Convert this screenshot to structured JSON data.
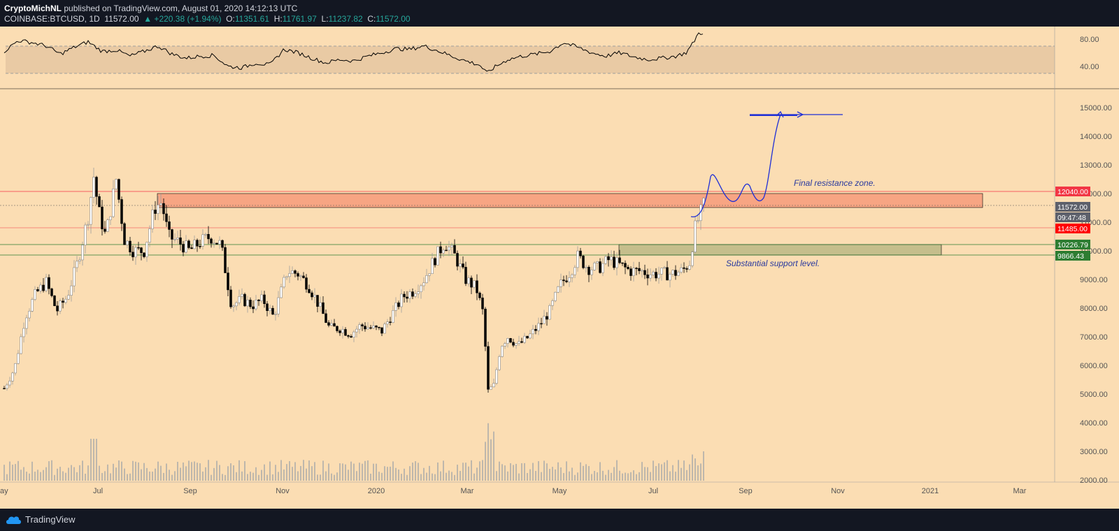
{
  "header": {
    "author": "CryptoMichNL",
    "published_text": "published on TradingView.com, August 01, 2020 14:12:13 UTC",
    "symbol": "COINBASE:BTCUSD, 1D",
    "price": "11572.00",
    "change": "▲ +220.38 (+1.94%)",
    "o_label": "O:",
    "o_val": "11351.61",
    "h_label": "H:",
    "h_val": "11761.97",
    "l_label": "L:",
    "l_val": "11237.82",
    "c_label": "C:",
    "c_val": "11572.00"
  },
  "footer": {
    "brand": "TradingView"
  },
  "chart_data": {
    "type": "candlestick",
    "x_labels": [
      "ay",
      "Jul",
      "Sep",
      "Nov",
      "2020",
      "Mar",
      "May",
      "Jul",
      "Sep",
      "Nov",
      "2021",
      "Mar"
    ],
    "price_axis_labels": [
      "15000.00",
      "14000.00",
      "13000.00",
      "12000.00",
      "11000.00",
      "10000.00",
      "9000.00",
      "8000.00",
      "7000.00",
      "6000.00",
      "5000.00",
      "4000.00",
      "3000.00",
      "2000.00"
    ],
    "rsi_axis_labels": [
      "80.00",
      "40.00"
    ],
    "ylim": [
      2000,
      15600
    ],
    "price_tags": [
      {
        "text": "12040.00",
        "color": "#f23645"
      },
      {
        "text": "11572.00",
        "color": "#5d606b"
      },
      {
        "text": "09:47:48",
        "color": "#5d606b"
      },
      {
        "text": "11485.00",
        "color": "#ff0000"
      },
      {
        "text": "10226.79",
        "color": "#2e7d32"
      },
      {
        "text": "9866.43",
        "color": "#2e7d32"
      }
    ],
    "annotations": [
      {
        "text": "Final resistance zone."
      },
      {
        "text": "Substantial support level."
      }
    ],
    "series": [
      {
        "name": "BTCUSD",
        "points": [
          [
            0,
            5200
          ],
          [
            15,
            5900
          ],
          [
            30,
            7700
          ],
          [
            45,
            8500
          ],
          [
            60,
            8900
          ],
          [
            75,
            7900
          ],
          [
            90,
            8400
          ],
          [
            105,
            9600
          ],
          [
            120,
            11200
          ],
          [
            128,
            12600
          ],
          [
            135,
            11400
          ],
          [
            145,
            10500
          ],
          [
            160,
            12500
          ],
          [
            172,
            10400
          ],
          [
            185,
            10000
          ],
          [
            200,
            10000
          ],
          [
            215,
            11500
          ],
          [
            225,
            11700
          ],
          [
            235,
            10500
          ],
          [
            250,
            10300
          ],
          [
            265,
            10000
          ],
          [
            280,
            10300
          ],
          [
            295,
            10500
          ],
          [
            310,
            10200
          ],
          [
            325,
            8100
          ],
          [
            340,
            8300
          ],
          [
            355,
            8100
          ],
          [
            370,
            8300
          ],
          [
            385,
            7700
          ],
          [
            395,
            8500
          ],
          [
            405,
            9300
          ],
          [
            420,
            9200
          ],
          [
            435,
            8800
          ],
          [
            450,
            8100
          ],
          [
            465,
            7300
          ],
          [
            480,
            7300
          ],
          [
            495,
            7100
          ],
          [
            510,
            7400
          ],
          [
            525,
            7300
          ],
          [
            540,
            7200
          ],
          [
            555,
            7800
          ],
          [
            570,
            8400
          ],
          [
            585,
            8600
          ],
          [
            600,
            9000
          ],
          [
            615,
            9700
          ],
          [
            630,
            10300
          ],
          [
            645,
            9800
          ],
          [
            660,
            9000
          ],
          [
            675,
            8700
          ],
          [
            685,
            7800
          ],
          [
            692,
            5100
          ],
          [
            700,
            5300
          ],
          [
            710,
            6700
          ],
          [
            720,
            7000
          ],
          [
            735,
            6700
          ],
          [
            750,
            7000
          ],
          [
            765,
            7400
          ],
          [
            780,
            7900
          ],
          [
            795,
            8800
          ],
          [
            810,
            9300
          ],
          [
            820,
            9800
          ],
          [
            835,
            9400
          ],
          [
            850,
            9400
          ],
          [
            865,
            9700
          ],
          [
            880,
            9500
          ],
          [
            895,
            9300
          ],
          [
            910,
            9300
          ],
          [
            925,
            9200
          ],
          [
            940,
            9200
          ],
          [
            955,
            9200
          ],
          [
            970,
            9300
          ],
          [
            980,
            9600
          ],
          [
            988,
            10800
          ],
          [
            994,
            11200
          ],
          [
            1000,
            11600
          ]
        ]
      },
      {
        "name": "RSI",
        "points": [
          [
            0,
            62
          ],
          [
            20,
            78
          ],
          [
            40,
            75
          ],
          [
            60,
            70
          ],
          [
            80,
            58
          ],
          [
            100,
            68
          ],
          [
            120,
            76
          ],
          [
            140,
            62
          ],
          [
            160,
            64
          ],
          [
            180,
            55
          ],
          [
            200,
            62
          ],
          [
            220,
            70
          ],
          [
            240,
            58
          ],
          [
            260,
            52
          ],
          [
            280,
            55
          ],
          [
            300,
            56
          ],
          [
            320,
            40
          ],
          [
            340,
            38
          ],
          [
            360,
            45
          ],
          [
            380,
            42
          ],
          [
            400,
            65
          ],
          [
            420,
            60
          ],
          [
            440,
            52
          ],
          [
            460,
            45
          ],
          [
            480,
            50
          ],
          [
            500,
            48
          ],
          [
            520,
            55
          ],
          [
            540,
            60
          ],
          [
            560,
            66
          ],
          [
            580,
            65
          ],
          [
            600,
            70
          ],
          [
            620,
            63
          ],
          [
            640,
            55
          ],
          [
            660,
            48
          ],
          [
            680,
            42
          ],
          [
            690,
            30
          ],
          [
            700,
            38
          ],
          [
            720,
            50
          ],
          [
            740,
            55
          ],
          [
            760,
            58
          ],
          [
            780,
            62
          ],
          [
            800,
            75
          ],
          [
            820,
            68
          ],
          [
            840,
            60
          ],
          [
            860,
            55
          ],
          [
            880,
            60
          ],
          [
            900,
            54
          ],
          [
            920,
            50
          ],
          [
            940,
            52
          ],
          [
            960,
            55
          ],
          [
            975,
            60
          ],
          [
            985,
            74
          ],
          [
            992,
            88
          ],
          [
            1000,
            90
          ]
        ]
      }
    ]
  }
}
